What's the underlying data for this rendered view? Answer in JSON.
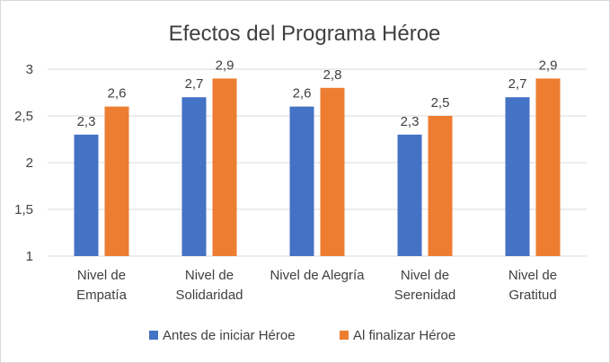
{
  "chart_data": {
    "type": "bar",
    "title": "Efectos del Programa Héroe",
    "categories": [
      [
        "Nivel de",
        "Empatía"
      ],
      [
        "Nivel de",
        "Solidaridad"
      ],
      [
        "Nivel de Alegría"
      ],
      [
        "Nivel de",
        "Serenidad"
      ],
      [
        "Nivel de",
        "Gratitud"
      ]
    ],
    "series": [
      {
        "name": "Antes de iniciar Héroe",
        "color": "#4472c4",
        "values": [
          2.3,
          2.7,
          2.6,
          2.3,
          2.7
        ],
        "labels": [
          "2,3",
          "2,7",
          "2,6",
          "2,3",
          "2,7"
        ]
      },
      {
        "name": "Al finalizar Héroe",
        "color": "#ed7d31",
        "values": [
          2.6,
          2.9,
          2.8,
          2.5,
          2.9
        ],
        "labels": [
          "2,6",
          "2,9",
          "2,8",
          "2,5",
          "2,9"
        ]
      }
    ],
    "ylim": [
      1,
      3
    ],
    "yticks": [
      1,
      1.5,
      2,
      2.5,
      3
    ],
    "ytick_labels": [
      "1",
      "1,5",
      "2",
      "2,5",
      "3"
    ],
    "grid": true,
    "legend": "bottom",
    "xlabel": "",
    "ylabel": ""
  }
}
